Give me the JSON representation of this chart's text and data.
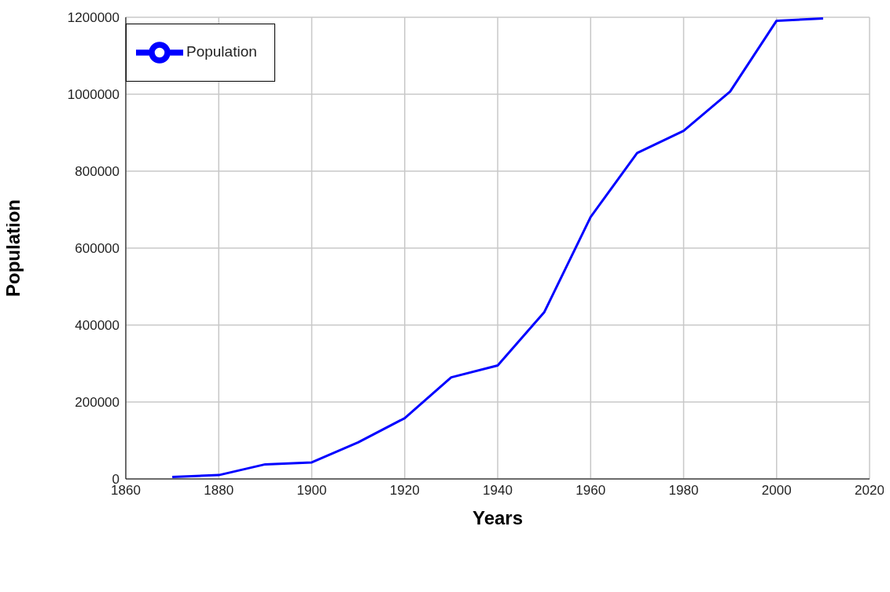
{
  "chart_data": {
    "type": "line",
    "xlabel": "Years",
    "ylabel": "Population",
    "x": [
      1870,
      1880,
      1890,
      1900,
      1910,
      1920,
      1930,
      1940,
      1950,
      1960,
      1970,
      1980,
      1990,
      2000,
      2010
    ],
    "series": [
      {
        "name": "Population",
        "color": "#0000ff",
        "values": [
          5000,
          10000,
          38000,
          43000,
          95000,
          158000,
          264000,
          295000,
          433000,
          681000,
          847000,
          905000,
          1007000,
          1191000,
          1197000
        ]
      }
    ],
    "xlim": [
      1860,
      2020
    ],
    "xticks": [
      1860,
      1880,
      1900,
      1920,
      1940,
      1960,
      1980,
      2000,
      2020
    ],
    "ylim": [
      0,
      1200000
    ],
    "yticks": [
      0,
      200000,
      400000,
      600000,
      800000,
      1000000,
      1200000
    ],
    "grid": true,
    "legend": "top left",
    "marker": "none",
    "line_style": "solid"
  }
}
